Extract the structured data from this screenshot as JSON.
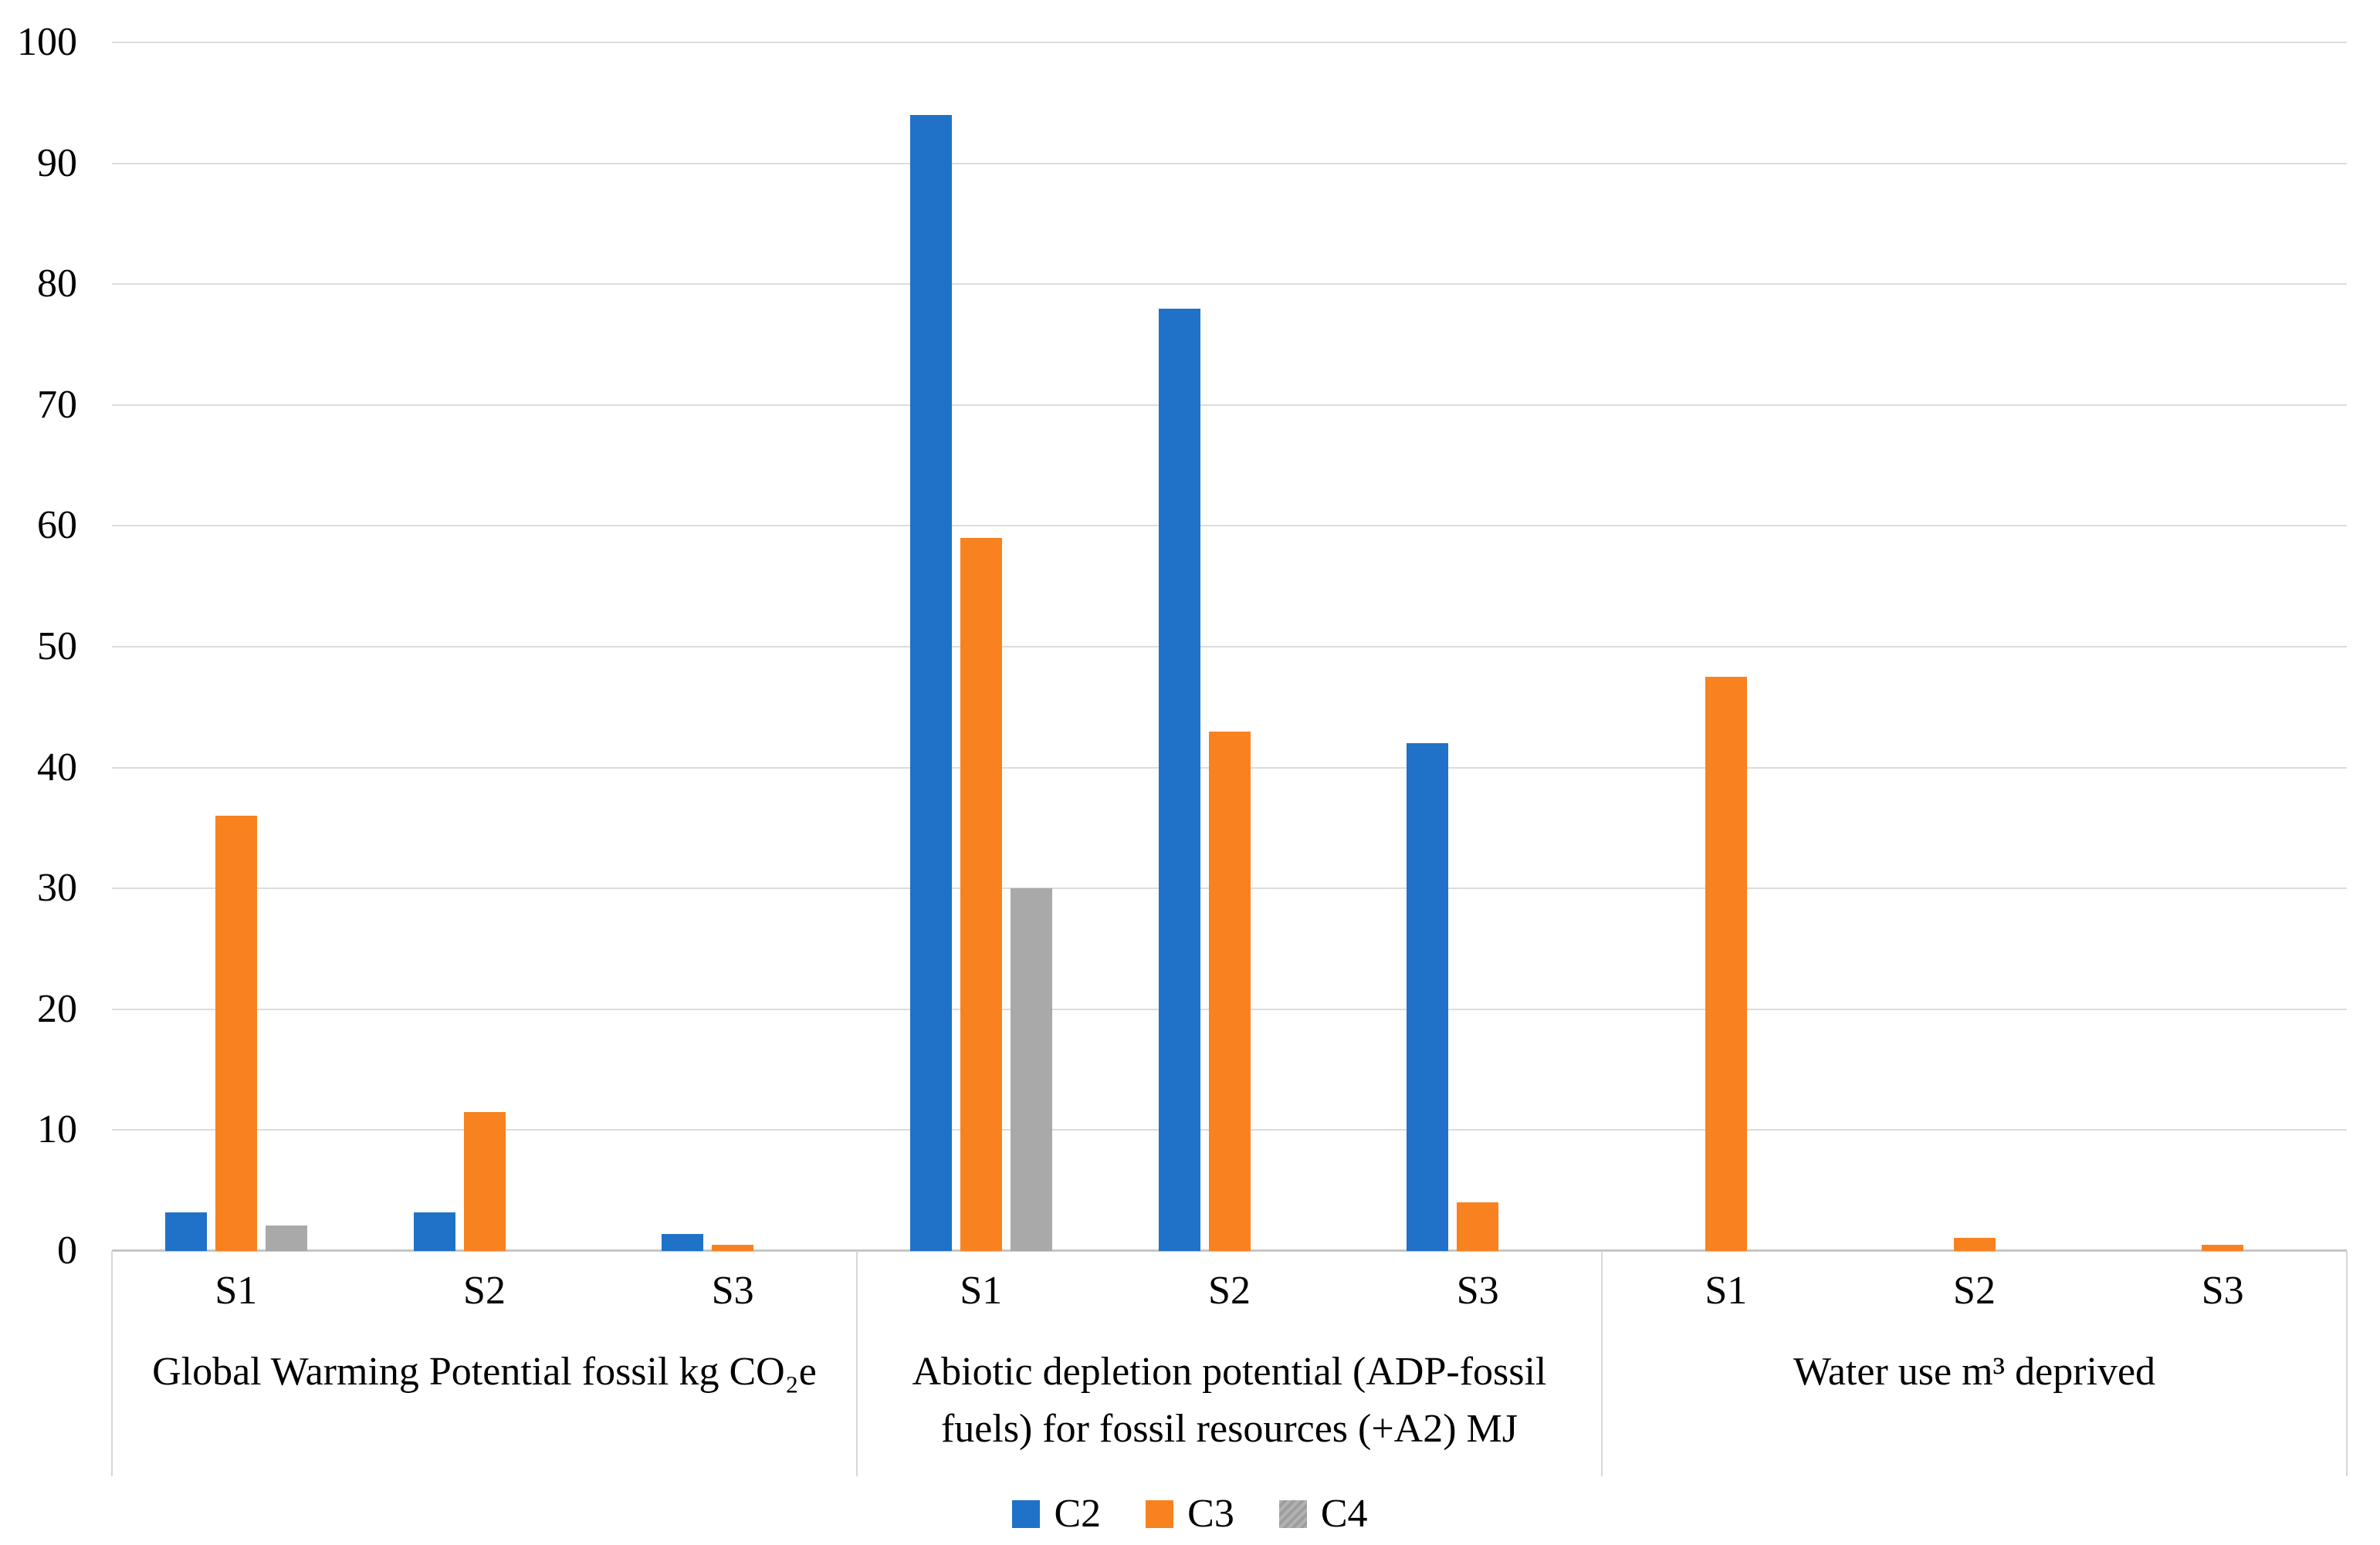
{
  "figure": {
    "background": "#FFFFFF",
    "text_color": "#000000",
    "gridline_color": "#DCDCDC",
    "axis_line_color": "#C6C6C6",
    "divider_color": "#D7D7D7"
  },
  "chart_data": {
    "type": "bar",
    "title": "",
    "xlabel": "",
    "ylabel": "",
    "ylim": [
      0,
      100
    ],
    "yticks": [
      0,
      10,
      20,
      30,
      40,
      50,
      60,
      70,
      80,
      90,
      100
    ],
    "grid": true,
    "legend_position": "bottom",
    "series_names": [
      "C2",
      "C3",
      "C4"
    ],
    "series_colors": {
      "C2": "#1F72C8",
      "C3": "#F8821F",
      "C4": "#A9A9A9"
    },
    "series_patterns": {
      "C2": "solid",
      "C3": "solid",
      "C4": "hatch"
    },
    "groups": [
      {
        "label": "Global Warming Potential fossil kg CO₂e",
        "categories": [
          "S1",
          "S2",
          "S3"
        ],
        "series": [
          {
            "name": "C2",
            "values": [
              3.2,
              3.2,
              1.4
            ]
          },
          {
            "name": "C3",
            "values": [
              36,
              11.5,
              0.5
            ]
          },
          {
            "name": "C4",
            "values": [
              2.1,
              0,
              0
            ]
          }
        ]
      },
      {
        "label": "Abiotic depletion potential (ADP-fossil\nfuels) for fossil resources (+A2) MJ",
        "categories": [
          "S1",
          "S2",
          "S3"
        ],
        "series": [
          {
            "name": "C2",
            "values": [
              94,
              78,
              42
            ]
          },
          {
            "name": "C3",
            "values": [
              59,
              43,
              4
            ]
          },
          {
            "name": "C4",
            "values": [
              30,
              0,
              0
            ]
          }
        ]
      },
      {
        "label": "Water use m³ deprived",
        "categories": [
          "S1",
          "S2",
          "S3"
        ],
        "series": [
          {
            "name": "C2",
            "values": [
              0,
              0,
              0
            ]
          },
          {
            "name": "C3",
            "values": [
              47.5,
              1.1,
              0.5
            ]
          },
          {
            "name": "C4",
            "values": [
              0,
              0,
              0
            ]
          }
        ]
      }
    ],
    "legend": [
      "C2",
      "C3",
      "C4"
    ]
  }
}
